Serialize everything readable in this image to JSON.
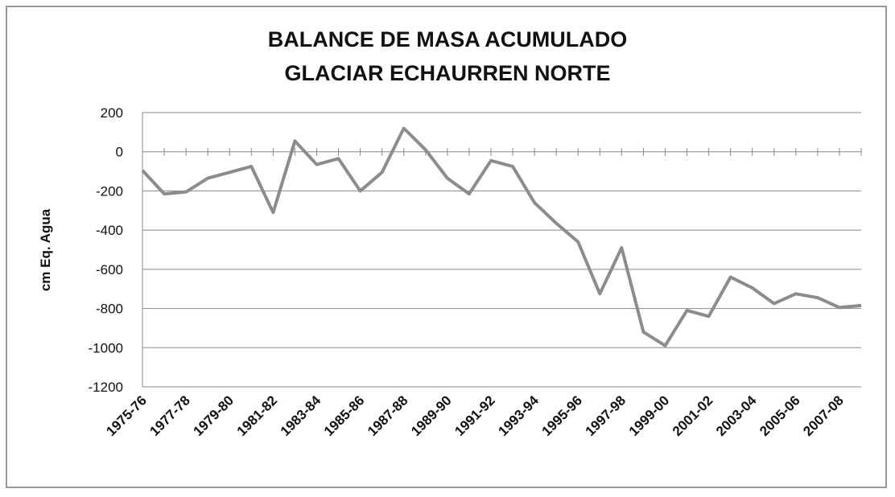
{
  "chart_data": {
    "type": "line",
    "title": [
      "BALANCE DE MASA ACUMULADO",
      "GLACIAR ECHAURREN NORTE"
    ],
    "y_label": "cm Eq. Agua",
    "categories": [
      "1975-76",
      null,
      "1977-78",
      null,
      "1979-80",
      null,
      "1981-82",
      null,
      "1983-84",
      null,
      "1985-86",
      null,
      "1987-88",
      null,
      "1989-90",
      null,
      "1991-92",
      null,
      "1993-94",
      null,
      "1995-96",
      null,
      "1997-98",
      null,
      "1999-00",
      null,
      "2001-02",
      null,
      "2003-04",
      null,
      "2005-06",
      null,
      "2007-08",
      null
    ],
    "values": [
      -95,
      -215,
      -205,
      -135,
      -105,
      -75,
      -310,
      55,
      -65,
      -35,
      -200,
      -105,
      120,
      10,
      -135,
      -215,
      -45,
      -75,
      -260,
      -365,
      -460,
      -725,
      -490,
      -920,
      -990,
      -810,
      -840,
      -640,
      -695,
      -775,
      -725,
      -745,
      -795,
      -785
    ],
    "color": "#8c8c8c",
    "ylim": [
      -1200,
      200
    ],
    "yticks": [
      200,
      0,
      -200,
      -400,
      -600,
      -800,
      -1000,
      -1200
    ],
    "grid": true
  }
}
